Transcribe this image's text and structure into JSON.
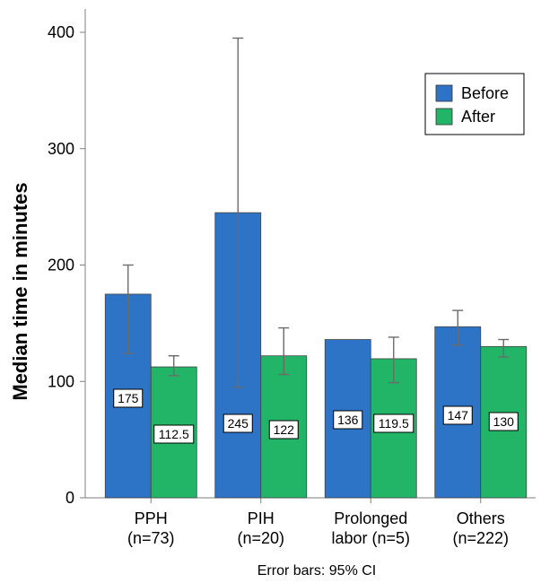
{
  "chart_data": {
    "type": "bar",
    "ylabel": "Median time in minutes",
    "footnote": "Error bars: 95% CI",
    "ylim": [
      0,
      400
    ],
    "yticks": [
      0,
      100,
      200,
      300,
      400
    ],
    "categories": [
      [
        "PPH",
        "(n=73)"
      ],
      [
        "PIH",
        "(n=20)"
      ],
      [
        "Prolonged",
        "labor (n=5)"
      ],
      [
        "Others",
        "(n=222)"
      ]
    ],
    "series": [
      {
        "name": "Before",
        "color": "#2e74c6",
        "values": [
          175,
          245,
          136,
          147
        ],
        "labels": [
          "175",
          "245",
          "136",
          "147"
        ],
        "ci": [
          [
            124,
            200
          ],
          [
            95,
            395
          ],
          null,
          [
            131,
            161
          ]
        ]
      },
      {
        "name": "After",
        "color": "#22b567",
        "values": [
          112.5,
          122,
          119.5,
          130
        ],
        "labels": [
          "112.5",
          "122",
          "119.5",
          "130"
        ],
        "ci": [
          [
            105,
            122
          ],
          [
            106,
            146
          ],
          [
            99,
            138
          ],
          [
            121,
            136
          ]
        ]
      }
    ],
    "legend": {
      "position": "top-right"
    },
    "grid": false
  }
}
